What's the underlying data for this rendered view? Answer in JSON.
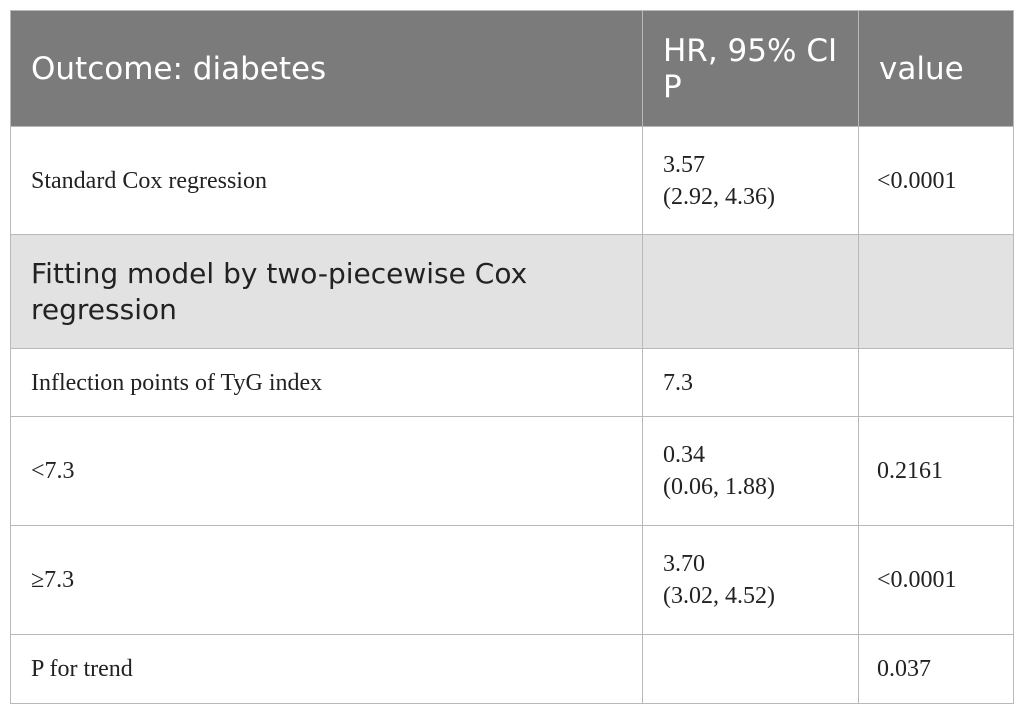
{
  "table": {
    "headers": [
      "Outcome: diabetes",
      "HR, 95% CI P",
      "value"
    ],
    "rows": [
      {
        "label": "Standard Cox regression",
        "hr": "3.57",
        "ci": "(2.92, 4.36)",
        "p": "<0.0001"
      },
      {
        "label": "Fitting model by two-piecewise Cox regression",
        "hr": "",
        "ci": "",
        "p": "",
        "section": true
      },
      {
        "label": "Inflection points of TyG index",
        "hr": "7.3",
        "ci": "",
        "p": ""
      },
      {
        "label": "<7.3",
        "hr": "0.34",
        "ci": "(0.06, 1.88)",
        "p": "0.2161"
      },
      {
        "label": "≥7.3",
        "hr": "3.70",
        "ci": "(3.02, 4.52)",
        "p": "<0.0001"
      },
      {
        "label": "P for trend",
        "hr": "",
        "ci": "",
        "p": "0.037"
      }
    ]
  }
}
